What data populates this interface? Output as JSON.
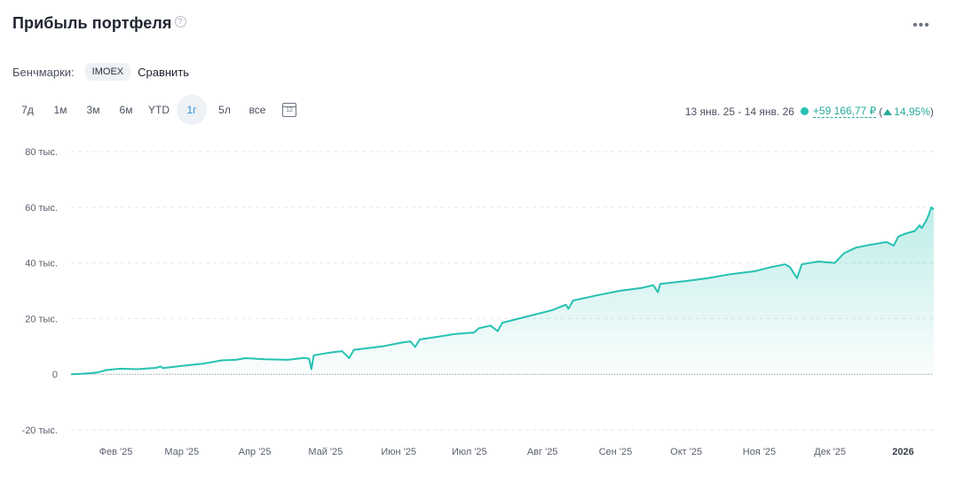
{
  "header": {
    "title": "Прибыль портфеля",
    "help_icon": "question-circle-icon",
    "more_icon": "more-horizontal-icon"
  },
  "benchmarks": {
    "label": "Бенчмарки:",
    "chip": "IMOEX",
    "compare": "Сравнить"
  },
  "ranges": {
    "items": [
      "7д",
      "1м",
      "3м",
      "6м",
      "YTD",
      "1г",
      "5л",
      "все"
    ],
    "active": "1г",
    "calendar_icon": "calendar-icon",
    "calendar_day": "12"
  },
  "summary": {
    "period": "13 янв. 25 - 14 янв. 26",
    "profit": "+59 166,77 ₽",
    "open_paren": "(",
    "percent": "14,95%",
    "close_paren": ")",
    "up_icon": "triangle-up-icon"
  },
  "colors": {
    "accent": "#26c1b3",
    "active_range": "#2f8fdc",
    "chip_bg": "#eef1f5"
  },
  "chart_data": {
    "type": "area",
    "y_ticks": [
      {
        "value": 80000,
        "label": "80 тыс."
      },
      {
        "value": 60000,
        "label": "60 тыс."
      },
      {
        "value": 40000,
        "label": "40 тыс."
      },
      {
        "value": 20000,
        "label": "20 тыс."
      },
      {
        "value": 0,
        "label": "0"
      },
      {
        "value": -20000,
        "label": "-20 тыс."
      }
    ],
    "ylim": [
      -20000,
      80000
    ],
    "xlim": [
      "2025-01-13",
      "2026-01-14"
    ],
    "x_ticks": [
      {
        "date": "2025-02-01",
        "label": "Фев '25",
        "bold": false
      },
      {
        "date": "2025-03-01",
        "label": "Мар '25",
        "bold": false
      },
      {
        "date": "2025-04-01",
        "label": "Апр '25",
        "bold": false
      },
      {
        "date": "2025-05-01",
        "label": "Май '25",
        "bold": false
      },
      {
        "date": "2025-06-01",
        "label": "Июн '25",
        "bold": false
      },
      {
        "date": "2025-07-01",
        "label": "Июл '25",
        "bold": false
      },
      {
        "date": "2025-08-01",
        "label": "Авг '25",
        "bold": false
      },
      {
        "date": "2025-09-01",
        "label": "Сен '25",
        "bold": false
      },
      {
        "date": "2025-10-01",
        "label": "Окт '25",
        "bold": false
      },
      {
        "date": "2025-11-01",
        "label": "Ноя '25",
        "bold": false
      },
      {
        "date": "2025-12-01",
        "label": "Дек '25",
        "bold": false
      },
      {
        "date": "2026-01-01",
        "label": "2026",
        "bold": true
      }
    ],
    "grid": true,
    "series": [
      {
        "points": [
          [
            "2025-01-13",
            0
          ],
          [
            "2025-01-18",
            200
          ],
          [
            "2025-01-24",
            600
          ],
          [
            "2025-01-28",
            1500
          ],
          [
            "2025-02-03",
            2000
          ],
          [
            "2025-02-10",
            1800
          ],
          [
            "2025-02-18",
            2300
          ],
          [
            "2025-02-20",
            2800
          ],
          [
            "2025-02-21",
            2200
          ],
          [
            "2025-03-01",
            3000
          ],
          [
            "2025-03-10",
            3800
          ],
          [
            "2025-03-18",
            5000
          ],
          [
            "2025-03-24",
            5200
          ],
          [
            "2025-03-28",
            5800
          ],
          [
            "2025-04-05",
            5400
          ],
          [
            "2025-04-15",
            5200
          ],
          [
            "2025-04-22",
            5900
          ],
          [
            "2025-04-24",
            5600
          ],
          [
            "2025-04-25",
            1800
          ],
          [
            "2025-04-26",
            6800
          ],
          [
            "2025-05-03",
            7800
          ],
          [
            "2025-05-08",
            8300
          ],
          [
            "2025-05-11",
            5800
          ],
          [
            "2025-05-13",
            8800
          ],
          [
            "2025-05-25",
            10000
          ],
          [
            "2025-06-03",
            11500
          ],
          [
            "2025-06-06",
            11800
          ],
          [
            "2025-06-08",
            9800
          ],
          [
            "2025-06-10",
            12500
          ],
          [
            "2025-06-18",
            13500
          ],
          [
            "2025-06-25",
            14500
          ],
          [
            "2025-07-03",
            15000
          ],
          [
            "2025-07-05",
            16500
          ],
          [
            "2025-07-10",
            17500
          ],
          [
            "2025-07-13",
            15500
          ],
          [
            "2025-07-15",
            18500
          ],
          [
            "2025-07-22",
            20000
          ],
          [
            "2025-07-29",
            21500
          ],
          [
            "2025-08-05",
            23000
          ],
          [
            "2025-08-11",
            25000
          ],
          [
            "2025-08-12",
            23500
          ],
          [
            "2025-08-14",
            26500
          ],
          [
            "2025-08-25",
            28500
          ],
          [
            "2025-09-03",
            30000
          ],
          [
            "2025-09-12",
            31000
          ],
          [
            "2025-09-17",
            32000
          ],
          [
            "2025-09-19",
            29500
          ],
          [
            "2025-09-20",
            32500
          ],
          [
            "2025-10-01",
            33500
          ],
          [
            "2025-10-10",
            34500
          ],
          [
            "2025-10-20",
            36000
          ],
          [
            "2025-10-30",
            37000
          ],
          [
            "2025-11-06",
            38500
          ],
          [
            "2025-11-12",
            39500
          ],
          [
            "2025-11-14",
            38500
          ],
          [
            "2025-11-17",
            34500
          ],
          [
            "2025-11-19",
            39500
          ],
          [
            "2025-11-26",
            40500
          ],
          [
            "2025-12-03",
            40000
          ],
          [
            "2025-12-07",
            43500
          ],
          [
            "2025-12-12",
            45500
          ],
          [
            "2025-12-18",
            46500
          ],
          [
            "2025-12-25",
            47500
          ],
          [
            "2025-12-28",
            46200
          ],
          [
            "2025-12-30",
            49500
          ],
          [
            "2026-01-02",
            50500
          ],
          [
            "2026-01-06",
            51500
          ],
          [
            "2026-01-08",
            53500
          ],
          [
            "2026-01-09",
            52500
          ],
          [
            "2026-01-11",
            55500
          ],
          [
            "2026-01-12",
            57500
          ],
          [
            "2026-01-13",
            60000
          ],
          [
            "2026-01-14",
            59200
          ]
        ]
      }
    ]
  }
}
